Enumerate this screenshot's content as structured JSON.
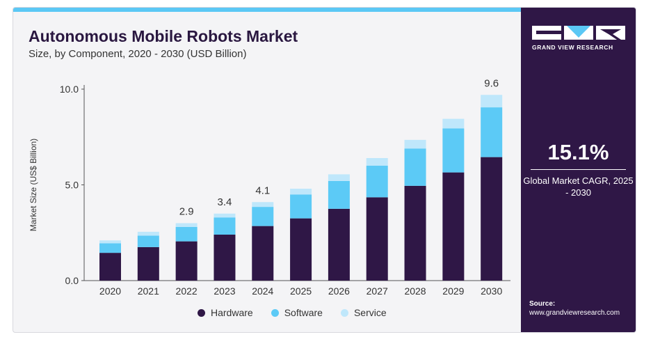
{
  "header": {
    "title": "Autonomous Mobile Robots Market",
    "subtitle": "Size, by Component, 2020 - 2030 (USD Billion)"
  },
  "colors": {
    "hardware": "#2f1746",
    "software": "#5ccaf6",
    "service": "#bfe7fb",
    "accent_bar": "#5bc8f5",
    "sidebar": "#2f1746"
  },
  "chart_data": {
    "type": "bar",
    "stacked": true,
    "title": "Autonomous Mobile Robots Market",
    "subtitle": "Size, by Component, 2020 - 2030 (USD Billion)",
    "xlabel": "",
    "ylabel": "Market Size (US$ Billion)",
    "ylim": [
      0,
      10
    ],
    "yticks": [
      "0.0",
      "5.0",
      "10.0"
    ],
    "grid": false,
    "legend_position": "bottom",
    "categories": [
      "2020",
      "2021",
      "2022",
      "2023",
      "2024",
      "2025",
      "2026",
      "2027",
      "2028",
      "2029",
      "2030"
    ],
    "series": [
      {
        "name": "Hardware",
        "values": [
          1.45,
          1.75,
          2.05,
          2.4,
          2.85,
          3.25,
          3.75,
          4.35,
          4.95,
          5.65,
          6.45
        ]
      },
      {
        "name": "Software",
        "values": [
          0.5,
          0.6,
          0.75,
          0.9,
          1.0,
          1.25,
          1.45,
          1.65,
          1.95,
          2.3,
          2.6
        ]
      },
      {
        "name": "Service",
        "values": [
          0.15,
          0.2,
          0.2,
          0.2,
          0.25,
          0.3,
          0.35,
          0.4,
          0.45,
          0.5,
          0.65
        ]
      }
    ],
    "data_labels": [
      {
        "category": "2022",
        "text": "2.9"
      },
      {
        "category": "2023",
        "text": "3.4"
      },
      {
        "category": "2024",
        "text": "4.1"
      },
      {
        "category": "2030",
        "text": "9.6"
      }
    ]
  },
  "sidebar": {
    "brand": "GRAND VIEW RESEARCH",
    "cagr_value": "15.1%",
    "cagr_label": "Global Market CAGR, 2025 - 2030",
    "source_label": "Source:",
    "source_url": "www.grandviewresearch.com"
  }
}
